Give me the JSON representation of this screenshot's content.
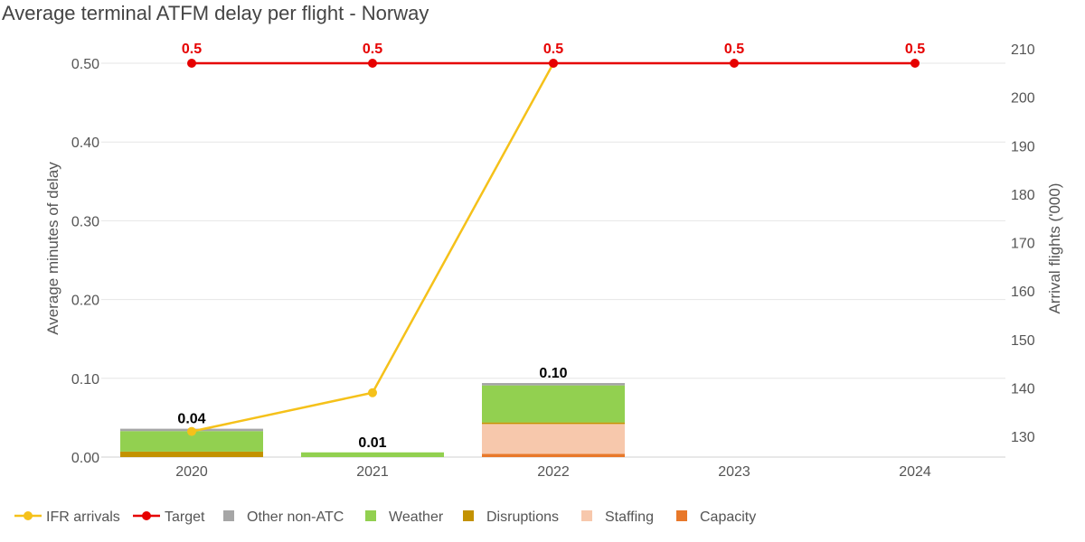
{
  "chart_data": {
    "type": "bar",
    "title": "Average terminal ATFM delay per flight - Norway",
    "categories": [
      "2020",
      "2021",
      "2022",
      "2023",
      "2024"
    ],
    "ylabel": "Average minutes of delay",
    "ylabel_right": "Arrival flights ('000)",
    "ylim": [
      0,
      0.5
    ],
    "ylim_right": [
      125,
      210
    ],
    "y_ticks": [
      "0.00",
      "0.10",
      "0.20",
      "0.30",
      "0.40",
      "0.50"
    ],
    "y_ticks_right": [
      "130",
      "140",
      "150",
      "160",
      "170",
      "180",
      "190",
      "200",
      "210"
    ],
    "stacked": true,
    "grid": true,
    "legend_position": "bottom",
    "series": [
      {
        "name": "Capacity",
        "color": "#e8782a",
        "values": [
          0.0,
          0.0,
          0.004,
          null,
          null
        ]
      },
      {
        "name": "Staffing",
        "color": "#f7c8ac",
        "values": [
          0.0,
          0.0,
          0.038,
          null,
          null
        ]
      },
      {
        "name": "Disruptions",
        "color": "#c39200",
        "values": [
          0.007,
          0.0,
          0.002,
          null,
          null
        ]
      },
      {
        "name": "Weather",
        "color": "#92d050",
        "values": [
          0.026,
          0.006,
          0.047,
          null,
          null
        ]
      },
      {
        "name": "Other non-ATC",
        "color": "#a6a6a6",
        "values": [
          0.003,
          0.0,
          0.003,
          null,
          null
        ]
      }
    ],
    "totals": [
      "0.04",
      "0.01",
      "0.10",
      null,
      null
    ],
    "lines": [
      {
        "name": "IFR arrivals",
        "color": "#f5c11a",
        "axis": "right",
        "values": [
          131,
          139,
          207,
          null,
          null
        ]
      },
      {
        "name": "Target",
        "color": "#e60000",
        "axis": "left",
        "values": [
          0.5,
          0.5,
          0.5,
          0.5,
          0.5
        ],
        "labels": [
          "0.5",
          "0.5",
          "0.5",
          "0.5",
          "0.5"
        ]
      }
    ],
    "legend": [
      {
        "name": "IFR arrivals",
        "type": "line",
        "color": "#f5c11a"
      },
      {
        "name": "Target",
        "type": "line",
        "color": "#e60000"
      },
      {
        "name": "Other non-ATC",
        "type": "square",
        "color": "#a6a6a6"
      },
      {
        "name": "Weather",
        "type": "square",
        "color": "#92d050"
      },
      {
        "name": "Disruptions",
        "type": "square",
        "color": "#c39200"
      },
      {
        "name": "Staffing",
        "type": "square",
        "color": "#f7c8ac"
      },
      {
        "name": "Capacity",
        "type": "square",
        "color": "#e8782a"
      }
    ]
  }
}
